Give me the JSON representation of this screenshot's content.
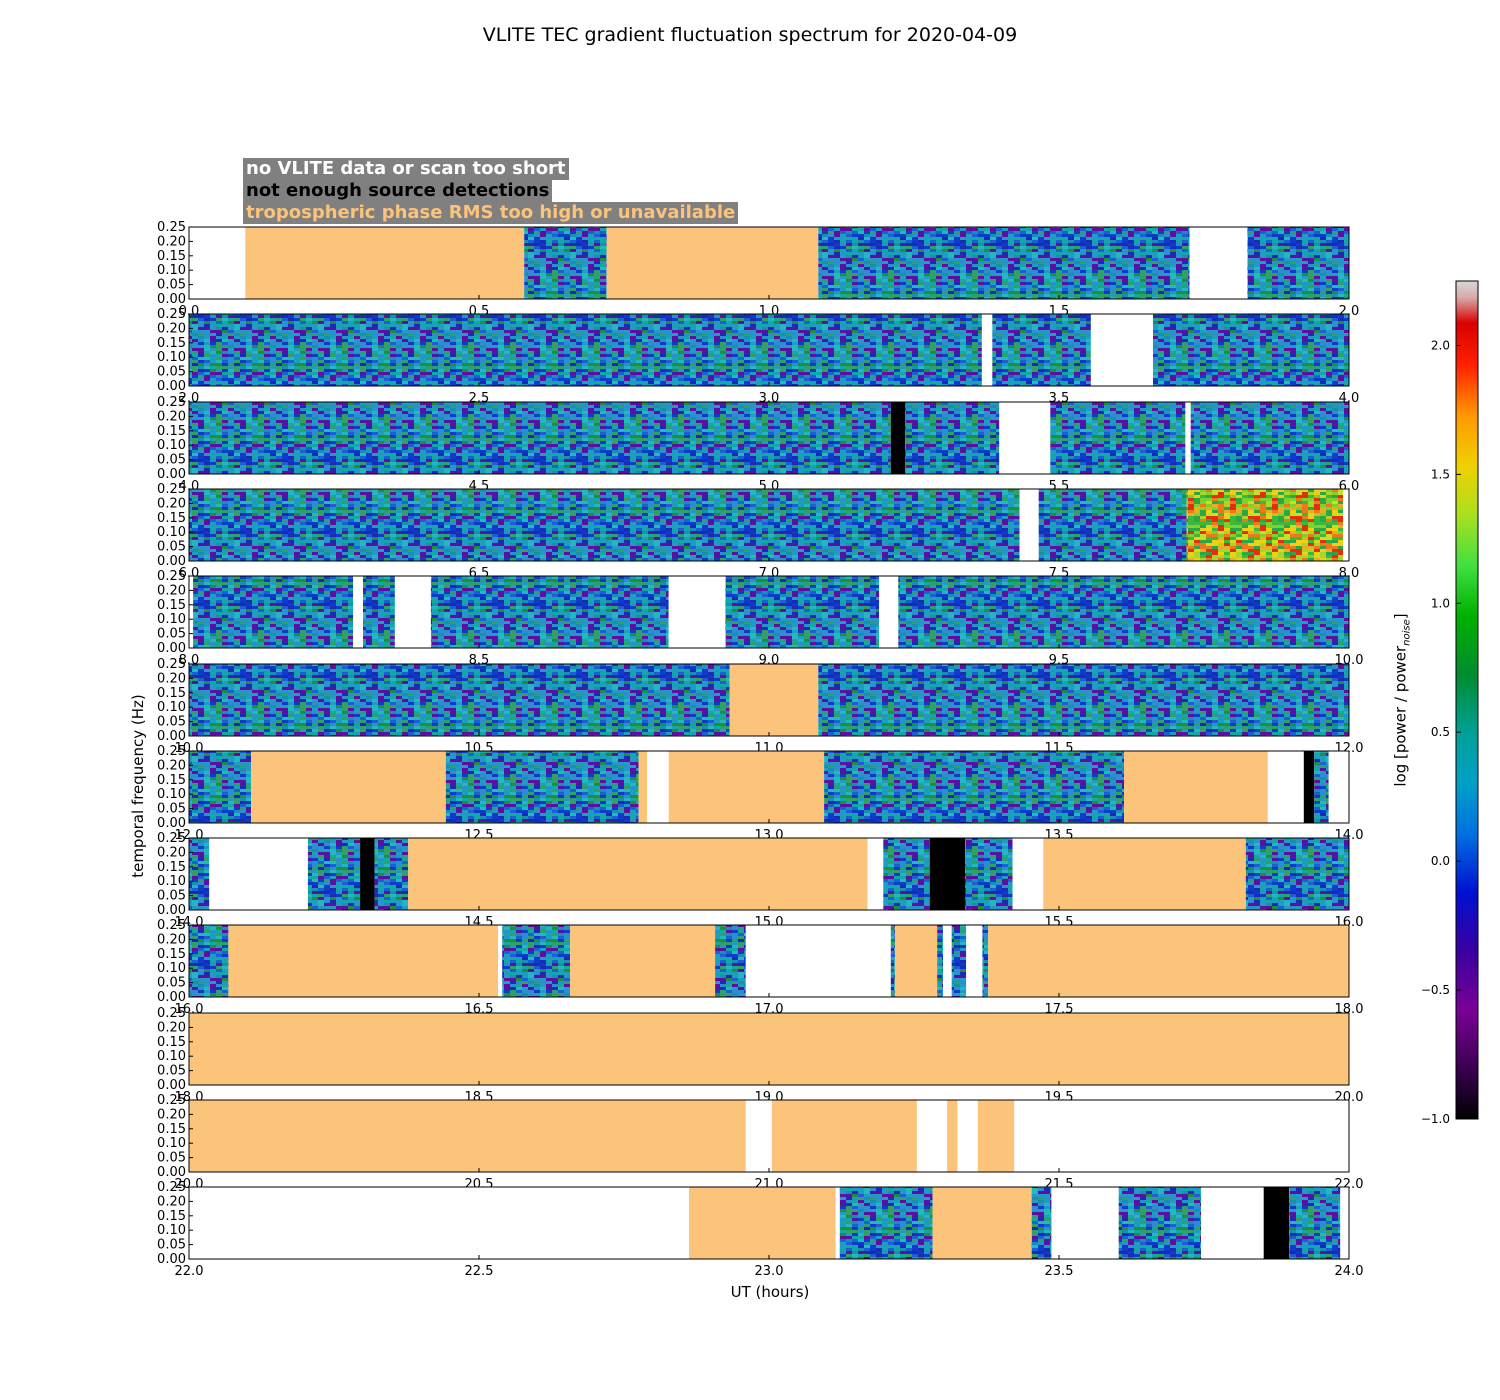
{
  "title": "VLITE TEC gradient fluctuation spectrum for 2020-04-09",
  "legend": [
    {
      "label": "no VLITE data or scan too short",
      "color": "#ffffff"
    },
    {
      "label": "not enough source detections",
      "color": "#000000"
    },
    {
      "label": "tropospheric phase RMS too high or unavailable",
      "color": "#fbc47a"
    }
  ],
  "colorbar": {
    "label_main": "log [power / power",
    "label_sub": "noise",
    "label_end": "]",
    "range": [
      -1.0,
      2.25
    ],
    "ticks": [
      "−1.0",
      "−0.5",
      "0.0",
      "0.5",
      "1.0",
      "1.5",
      "2.0"
    ],
    "tick_values": [
      -1.0,
      -0.5,
      0.0,
      0.5,
      1.0,
      1.5,
      2.0
    ]
  },
  "chart_data": {
    "type": "heatmap",
    "title": "VLITE TEC gradient fluctuation spectrum for 2020-04-09",
    "xlabel": "UT (hours)",
    "ylabel": "temporal frequency (Hz)",
    "ylim": [
      0,
      0.25
    ],
    "yticks": [
      "0.00",
      "0.05",
      "0.10",
      "0.15",
      "0.20",
      "0.25"
    ],
    "mask_colors": {
      "nodata": "#ffffff",
      "detect": "#000000",
      "tropo": "#fbc47a"
    },
    "panels": [
      {
        "xlim": [
          0,
          2
        ],
        "xticks": [
          "0.0",
          "0.5",
          "1.0",
          "1.5",
          "2.0"
        ],
        "intervals": [
          {
            "start": 0.0,
            "end": 0.097,
            "state": "nodata"
          },
          {
            "start": 0.097,
            "end": 0.578,
            "state": "tropo"
          },
          {
            "start": 0.578,
            "end": 0.72,
            "state": "data"
          },
          {
            "start": 0.72,
            "end": 1.085,
            "state": "tropo"
          },
          {
            "start": 1.085,
            "end": 1.725,
            "state": "data"
          },
          {
            "start": 1.725,
            "end": 1.825,
            "state": "nodata"
          },
          {
            "start": 1.825,
            "end": 2.0,
            "state": "data"
          }
        ]
      },
      {
        "xlim": [
          2,
          4
        ],
        "xticks": [
          "2.0",
          "2.5",
          "3.0",
          "3.5",
          "4.0"
        ],
        "intervals": [
          {
            "start": 2.0,
            "end": 3.367,
            "state": "data"
          },
          {
            "start": 3.367,
            "end": 3.385,
            "state": "nodata"
          },
          {
            "start": 3.385,
            "end": 3.555,
            "state": "data"
          },
          {
            "start": 3.555,
            "end": 3.662,
            "state": "nodata"
          },
          {
            "start": 3.662,
            "end": 4.0,
            "state": "data"
          }
        ]
      },
      {
        "xlim": [
          4,
          6
        ],
        "xticks": [
          "4.0",
          "4.5",
          "5.0",
          "5.5",
          "6.0"
        ],
        "intervals": [
          {
            "start": 4.0,
            "end": 5.21,
            "state": "data"
          },
          {
            "start": 5.21,
            "end": 5.235,
            "state": "detect"
          },
          {
            "start": 5.235,
            "end": 5.397,
            "state": "data"
          },
          {
            "start": 5.397,
            "end": 5.485,
            "state": "nodata"
          },
          {
            "start": 5.485,
            "end": 5.718,
            "state": "data"
          },
          {
            "start": 5.718,
            "end": 5.727,
            "state": "nodata"
          },
          {
            "start": 5.727,
            "end": 6.0,
            "state": "data"
          }
        ]
      },
      {
        "xlim": [
          6,
          8
        ],
        "xticks": [
          "6.0",
          "6.5",
          "7.0",
          "7.5",
          "8.0"
        ],
        "intervals": [
          {
            "start": 6.0,
            "end": 7.432,
            "state": "data"
          },
          {
            "start": 7.432,
            "end": 7.465,
            "state": "nodata"
          },
          {
            "start": 7.465,
            "end": 7.72,
            "state": "data"
          },
          {
            "start": 7.72,
            "end": 7.99,
            "state": "hot"
          },
          {
            "start": 7.99,
            "end": 8.0,
            "state": "nodata"
          }
        ]
      },
      {
        "xlim": [
          8,
          10
        ],
        "xticks": [
          "8.0",
          "8.5",
          "9.0",
          "9.5",
          "10.0"
        ],
        "intervals": [
          {
            "start": 8.0,
            "end": 8.007,
            "state": "nodata"
          },
          {
            "start": 8.007,
            "end": 8.283,
            "state": "data"
          },
          {
            "start": 8.283,
            "end": 8.3,
            "state": "nodata"
          },
          {
            "start": 8.3,
            "end": 8.355,
            "state": "data"
          },
          {
            "start": 8.355,
            "end": 8.417,
            "state": "nodata"
          },
          {
            "start": 8.417,
            "end": 8.827,
            "state": "data"
          },
          {
            "start": 8.827,
            "end": 8.925,
            "state": "nodata"
          },
          {
            "start": 8.925,
            "end": 9.19,
            "state": "data"
          },
          {
            "start": 9.19,
            "end": 9.223,
            "state": "nodata"
          },
          {
            "start": 9.223,
            "end": 10.0,
            "state": "data"
          }
        ]
      },
      {
        "xlim": [
          10,
          12
        ],
        "xticks": [
          "10.0",
          "10.5",
          "11.0",
          "11.5",
          "12.0"
        ],
        "intervals": [
          {
            "start": 10.0,
            "end": 10.932,
            "state": "data"
          },
          {
            "start": 10.932,
            "end": 11.085,
            "state": "tropo"
          },
          {
            "start": 11.085,
            "end": 12.0,
            "state": "data"
          }
        ]
      },
      {
        "xlim": [
          12,
          14
        ],
        "xticks": [
          "12.0",
          "12.5",
          "13.0",
          "13.5",
          "14.0"
        ],
        "intervals": [
          {
            "start": 12.0,
            "end": 12.107,
            "state": "data"
          },
          {
            "start": 12.107,
            "end": 12.443,
            "state": "tropo"
          },
          {
            "start": 12.443,
            "end": 12.775,
            "state": "data"
          },
          {
            "start": 12.775,
            "end": 12.79,
            "state": "tropo"
          },
          {
            "start": 12.79,
            "end": 12.827,
            "state": "nodata"
          },
          {
            "start": 12.827,
            "end": 13.095,
            "state": "tropo"
          },
          {
            "start": 13.095,
            "end": 13.612,
            "state": "data"
          },
          {
            "start": 13.612,
            "end": 13.86,
            "state": "tropo"
          },
          {
            "start": 13.86,
            "end": 13.922,
            "state": "nodata"
          },
          {
            "start": 13.922,
            "end": 13.94,
            "state": "detect"
          },
          {
            "start": 13.94,
            "end": 13.965,
            "state": "data"
          },
          {
            "start": 13.965,
            "end": 14.0,
            "state": "nodata"
          }
        ]
      },
      {
        "xlim": [
          14,
          16
        ],
        "xticks": [
          "14.0",
          "14.5",
          "15.0",
          "15.5",
          "16.0"
        ],
        "intervals": [
          {
            "start": 14.0,
            "end": 14.035,
            "state": "data"
          },
          {
            "start": 14.035,
            "end": 14.205,
            "state": "nodata"
          },
          {
            "start": 14.205,
            "end": 14.295,
            "state": "data"
          },
          {
            "start": 14.295,
            "end": 14.32,
            "state": "detect"
          },
          {
            "start": 14.32,
            "end": 14.378,
            "state": "data"
          },
          {
            "start": 14.378,
            "end": 15.17,
            "state": "tropo"
          },
          {
            "start": 15.17,
            "end": 15.197,
            "state": "nodata"
          },
          {
            "start": 15.197,
            "end": 15.277,
            "state": "data"
          },
          {
            "start": 15.277,
            "end": 15.338,
            "state": "detect"
          },
          {
            "start": 15.338,
            "end": 15.42,
            "state": "data"
          },
          {
            "start": 15.42,
            "end": 15.473,
            "state": "nodata"
          },
          {
            "start": 15.473,
            "end": 15.822,
            "state": "tropo"
          },
          {
            "start": 15.822,
            "end": 16.0,
            "state": "data"
          }
        ]
      },
      {
        "xlim": [
          16,
          18
        ],
        "xticks": [
          "16.0",
          "16.5",
          "17.0",
          "17.5",
          "18.0"
        ],
        "intervals": [
          {
            "start": 16.0,
            "end": 16.068,
            "state": "data"
          },
          {
            "start": 16.068,
            "end": 16.533,
            "state": "tropo"
          },
          {
            "start": 16.533,
            "end": 16.54,
            "state": "nodata"
          },
          {
            "start": 16.54,
            "end": 16.657,
            "state": "data"
          },
          {
            "start": 16.657,
            "end": 16.907,
            "state": "tropo"
          },
          {
            "start": 16.907,
            "end": 16.96,
            "state": "data"
          },
          {
            "start": 16.96,
            "end": 17.21,
            "state": "nodata"
          },
          {
            "start": 17.21,
            "end": 17.217,
            "state": "data"
          },
          {
            "start": 17.217,
            "end": 17.29,
            "state": "tropo"
          },
          {
            "start": 17.29,
            "end": 17.3,
            "state": "data"
          },
          {
            "start": 17.3,
            "end": 17.315,
            "state": "nodata"
          },
          {
            "start": 17.315,
            "end": 17.34,
            "state": "data"
          },
          {
            "start": 17.34,
            "end": 17.368,
            "state": "nodata"
          },
          {
            "start": 17.368,
            "end": 17.378,
            "state": "data"
          },
          {
            "start": 17.378,
            "end": 18.0,
            "state": "tropo"
          }
        ]
      },
      {
        "xlim": [
          18,
          20
        ],
        "xticks": [
          "18.0",
          "18.5",
          "19.0",
          "19.5",
          "20.0"
        ],
        "intervals": [
          {
            "start": 18.0,
            "end": 20.0,
            "state": "tropo"
          }
        ]
      },
      {
        "xlim": [
          20,
          22
        ],
        "xticks": [
          "20.0",
          "20.5",
          "21.0",
          "21.5",
          "22.0"
        ],
        "intervals": [
          {
            "start": 20.0,
            "end": 20.96,
            "state": "tropo"
          },
          {
            "start": 20.96,
            "end": 21.005,
            "state": "nodata"
          },
          {
            "start": 21.005,
            "end": 21.255,
            "state": "tropo"
          },
          {
            "start": 21.255,
            "end": 21.307,
            "state": "nodata"
          },
          {
            "start": 21.307,
            "end": 21.325,
            "state": "tropo"
          },
          {
            "start": 21.325,
            "end": 21.36,
            "state": "nodata"
          },
          {
            "start": 21.36,
            "end": 21.423,
            "state": "tropo"
          },
          {
            "start": 21.423,
            "end": 22.0,
            "state": "nodata"
          }
        ]
      },
      {
        "xlim": [
          22,
          24
        ],
        "xticks": [
          "22.0",
          "22.5",
          "23.0",
          "23.5",
          "24.0"
        ],
        "intervals": [
          {
            "start": 22.0,
            "end": 22.862,
            "state": "nodata"
          },
          {
            "start": 22.862,
            "end": 23.115,
            "state": "tropo"
          },
          {
            "start": 23.115,
            "end": 23.122,
            "state": "nodata"
          },
          {
            "start": 23.122,
            "end": 23.282,
            "state": "data"
          },
          {
            "start": 23.282,
            "end": 23.453,
            "state": "tropo"
          },
          {
            "start": 23.453,
            "end": 23.487,
            "state": "data"
          },
          {
            "start": 23.487,
            "end": 23.603,
            "state": "nodata"
          },
          {
            "start": 23.603,
            "end": 23.745,
            "state": "data"
          },
          {
            "start": 23.745,
            "end": 23.853,
            "state": "nodata"
          },
          {
            "start": 23.853,
            "end": 23.897,
            "state": "detect"
          },
          {
            "start": 23.897,
            "end": 23.985,
            "state": "data"
          },
          {
            "start": 23.985,
            "end": 24.0,
            "state": "nodata"
          }
        ]
      }
    ]
  }
}
